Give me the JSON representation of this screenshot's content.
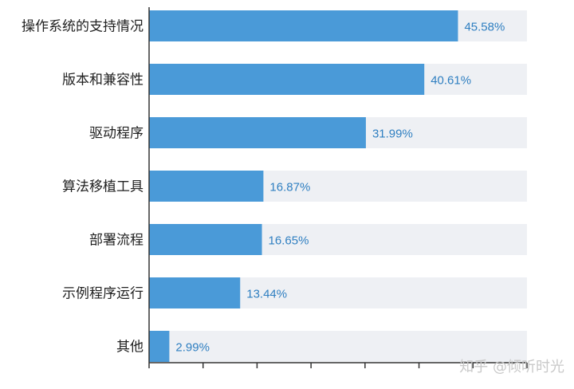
{
  "chart_data": {
    "type": "bar",
    "orientation": "horizontal",
    "categories": [
      "操作系统的支持情况",
      "版本和兼容性",
      "驱动程序",
      "算法移植工具",
      "部署流程",
      "示例程序运行",
      "其他"
    ],
    "values": [
      45.58,
      40.61,
      31.99,
      16.87,
      16.65,
      13.44,
      2.99
    ],
    "value_labels": [
      "45.58%",
      "40.61%",
      "31.99%",
      "16.87%",
      "16.65%",
      "13.44%",
      "2.99%"
    ],
    "xlim": [
      0,
      55.76
    ],
    "unit": "%",
    "grid": false,
    "legend": "none",
    "colors": {
      "bar": "#4a9ad8",
      "track": "#eef0f4",
      "label": "#222222",
      "value": "#2f7fc1",
      "axis": "#333333"
    }
  },
  "watermark": "知乎 @倾听时光"
}
